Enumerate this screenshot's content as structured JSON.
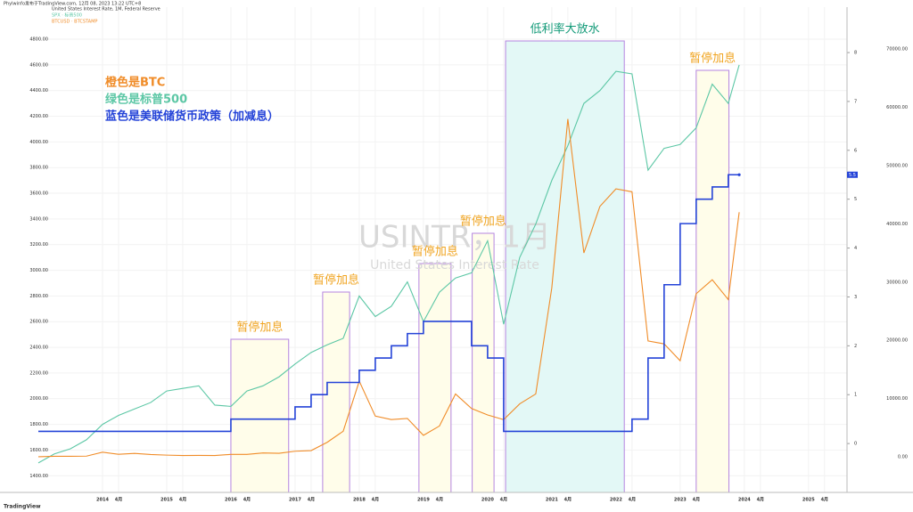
{
  "chart_data": {
    "type": "line",
    "credit": "Phylwinfo发布于TradingView.com, 12月 08, 2023 13:22 UTC+8",
    "header": [
      "United States Interest Rate, 1M, Federal Reserve",
      "SPX · 标普500",
      "BTCUSD · BTCSTAMP"
    ],
    "watermark": "USINTR，1月",
    "watermark_sub": "United States Interest Rate",
    "footer": "TradingView",
    "notes": [
      {
        "text": "橙色是BTC",
        "color": "#f08c28"
      },
      {
        "text": "绿色是标普500",
        "color": "#5cc7a5"
      },
      {
        "text": "蓝色是美联储货币政策（加减息）",
        "color": "#2443d8"
      }
    ],
    "regions": [
      {
        "label": "暂停加息",
        "x": [
          2016.0,
          2016.9
        ],
        "kind": "pause"
      },
      {
        "label": "暂停加息",
        "x": [
          2017.43,
          2017.85
        ],
        "kind": "pause"
      },
      {
        "label": "暂停加息",
        "x": [
          2018.93,
          2019.43
        ],
        "kind": "pause"
      },
      {
        "label": "暂停加息",
        "x": [
          2019.76,
          2020.1
        ],
        "kind": "pause"
      },
      {
        "label": "低利率大放水",
        "x": [
          2020.28,
          2022.13
        ],
        "kind": "easing"
      },
      {
        "label": "暂停加息",
        "x": [
          2023.25,
          2023.76
        ],
        "kind": "pause"
      }
    ],
    "x": [
      2013.0,
      2013.25,
      2013.5,
      2013.75,
      2014.0,
      2014.25,
      2014.5,
      2014.75,
      2015.0,
      2015.25,
      2015.5,
      2015.75,
      2016.0,
      2016.25,
      2016.5,
      2016.75,
      2017.0,
      2017.25,
      2017.5,
      2017.75,
      2018.0,
      2018.25,
      2018.5,
      2018.75,
      2019.0,
      2019.25,
      2019.5,
      2019.75,
      2020.0,
      2020.25,
      2020.5,
      2020.75,
      2021.0,
      2021.25,
      2021.5,
      2021.75,
      2022.0,
      2022.25,
      2022.5,
      2022.75,
      2023.0,
      2023.25,
      2023.5,
      2023.75,
      2023.92
    ],
    "series": [
      {
        "name": "SPX",
        "color": "#5cc7a5",
        "axis": "y",
        "values": [
          1500,
          1570,
          1610,
          1680,
          1800,
          1870,
          1920,
          1970,
          2060,
          2080,
          2100,
          1950,
          1940,
          2060,
          2100,
          2170,
          2270,
          2360,
          2420,
          2470,
          2800,
          2640,
          2720,
          2910,
          2600,
          2830,
          2940,
          2980,
          3230,
          2580,
          3100,
          3360,
          3700,
          3970,
          4300,
          4400,
          4550,
          4530,
          3780,
          3950,
          3980,
          4110,
          4450,
          4300,
          4600
        ]
      },
      {
        "name": "BTCUSD",
        "color": "#f08c28",
        "axis": "y3",
        "values": [
          20,
          100,
          100,
          130,
          800,
          450,
          600,
          400,
          300,
          240,
          260,
          230,
          430,
          420,
          670,
          610,
          970,
          1080,
          2500,
          4400,
          13000,
          7000,
          6400,
          6600,
          3700,
          5300,
          10800,
          8300,
          7200,
          6400,
          9100,
          10800,
          29000,
          58000,
          35000,
          43000,
          46000,
          45500,
          19900,
          19400,
          16500,
          28000,
          30400,
          27000,
          42000
        ]
      },
      {
        "name": "USINTR",
        "color": "#2443d8",
        "axis": "y2",
        "step": true,
        "values": [
          0.25,
          0.25,
          0.25,
          0.25,
          0.25,
          0.25,
          0.25,
          0.25,
          0.25,
          0.25,
          0.25,
          0.25,
          0.5,
          0.5,
          0.5,
          0.5,
          0.75,
          1.0,
          1.25,
          1.25,
          1.5,
          1.75,
          2.0,
          2.25,
          2.5,
          2.5,
          2.5,
          2.0,
          1.75,
          0.25,
          0.25,
          0.25,
          0.25,
          0.25,
          0.25,
          0.25,
          0.25,
          0.5,
          1.75,
          3.25,
          4.5,
          5.0,
          5.25,
          5.5,
          5.5
        ]
      }
    ],
    "xlim": [
      2012.95,
      2025.6
    ],
    "xticks": [
      2014,
      {
        "value": 2014.25,
        "label": "4月"
      },
      2015,
      {
        "value": 2015.25,
        "label": "4月"
      },
      2016,
      {
        "value": 2016.25,
        "label": "4月"
      },
      2017,
      {
        "value": 2017.25,
        "label": "4月"
      },
      2018,
      {
        "value": 2018.25,
        "label": "4月"
      },
      2019,
      {
        "value": 2019.25,
        "label": "4月"
      },
      2020,
      {
        "value": 2020.25,
        "label": "4月"
      },
      2021,
      {
        "value": 2021.25,
        "label": "4月"
      },
      2022,
      {
        "value": 2022.25,
        "label": "4月"
      },
      2023,
      {
        "value": 2023.25,
        "label": "4月"
      },
      2024,
      {
        "value": 2024.25,
        "label": "4月"
      },
      2025,
      {
        "value": 2025.25,
        "label": "4月"
      }
    ],
    "ylim": [
      1270,
      5050
    ],
    "yticks": [
      {
        "value": 1400,
        "label": "1400.00"
      },
      {
        "value": 1600,
        "label": "1600.00"
      },
      {
        "value": 1800,
        "label": "1800.00"
      },
      {
        "value": 2000,
        "label": "2000.00"
      },
      {
        "value": 2200,
        "label": "2200.00"
      },
      {
        "value": 2400,
        "label": "2400.00"
      },
      {
        "value": 2600,
        "label": "2600.00"
      },
      {
        "value": 2800,
        "label": "2800.00"
      },
      {
        "value": 3000,
        "label": "3000.00"
      },
      {
        "value": 3200,
        "label": "3200.00"
      },
      {
        "value": 3400,
        "label": "3400.00"
      },
      {
        "value": 3600,
        "label": "3600.00"
      },
      {
        "value": 3800,
        "label": "3800.00"
      },
      {
        "value": 4000,
        "label": "4000.00"
      },
      {
        "value": 4200,
        "label": "4200.00"
      },
      {
        "value": 4400,
        "label": "4400.00"
      },
      {
        "value": 4600,
        "label": "4600.00"
      },
      {
        "value": 4800,
        "label": "4800.00"
      }
    ],
    "y2lim": [
      -1,
      8.93
    ],
    "y2ticks": [
      0,
      1,
      2,
      3,
      4,
      5,
      6,
      7,
      8
    ],
    "y3lim": [
      -6100,
      77200
    ],
    "y3ticks": [
      {
        "value": 0,
        "label": "0.00"
      },
      {
        "value": 10000,
        "label": "10000.00"
      },
      {
        "value": 20000,
        "label": "20000.00"
      },
      {
        "value": 30000,
        "label": "30000.00"
      },
      {
        "value": 40000,
        "label": "40000.00"
      },
      {
        "value": 50000,
        "label": "50000.00"
      },
      {
        "value": 60000,
        "label": "60000.00"
      },
      {
        "value": 70000,
        "label": "70000.00"
      }
    ],
    "grid": true
  }
}
